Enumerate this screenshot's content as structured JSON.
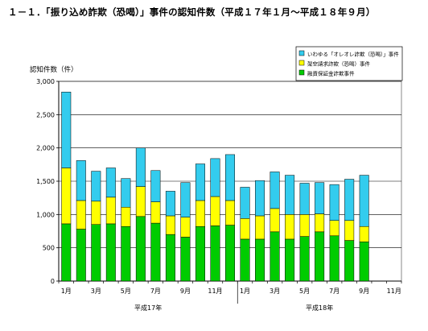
{
  "title": "１－１．「振り込め詐欺（恐喝）」事件の認知件数（平成１７年１月～平成１８年９月）",
  "chart_data": {
    "type": "bar",
    "stacked": true,
    "ylabel": "認知件数（件）",
    "ylim": [
      0,
      3000
    ],
    "yticks": [
      "0",
      "500",
      "1,000",
      "1,500",
      "2,000",
      "2,500",
      "3,000"
    ],
    "ytick_values": [
      0,
      500,
      1000,
      1500,
      2000,
      2500,
      3000
    ],
    "x_tick_labels": [
      "1月",
      "",
      "3月",
      "",
      "5月",
      "",
      "7月",
      "",
      "9月",
      "",
      "11月",
      "",
      "1月",
      "",
      "3月",
      "",
      "5月",
      "",
      "7月",
      "",
      "9月",
      "",
      "11月"
    ],
    "year_labels": [
      "平成17年",
      "平成18年"
    ],
    "grid": "horizontal",
    "legend_position": "top-right",
    "series": [
      {
        "name": "融資保証金詐欺事件",
        "color": "#00cc00",
        "values": [
          860,
          780,
          850,
          860,
          820,
          970,
          870,
          700,
          660,
          820,
          830,
          840,
          630,
          630,
          740,
          630,
          670,
          740,
          680,
          610,
          590,
          null,
          null
        ]
      },
      {
        "name": "架空請求詐欺（恐喝）事件",
        "color": "#ffff00",
        "values": [
          840,
          430,
          350,
          400,
          290,
          450,
          320,
          280,
          300,
          390,
          440,
          370,
          310,
          350,
          350,
          370,
          330,
          270,
          230,
          300,
          230,
          null,
          null
        ]
      },
      {
        "name": "いわゆる「オレオレ詐欺（恐喝）」事件",
        "color": "#33ccee",
        "values": [
          1140,
          600,
          450,
          440,
          430,
          580,
          470,
          370,
          520,
          550,
          570,
          690,
          470,
          530,
          550,
          590,
          470,
          470,
          540,
          620,
          770,
          null,
          null
        ]
      }
    ]
  }
}
